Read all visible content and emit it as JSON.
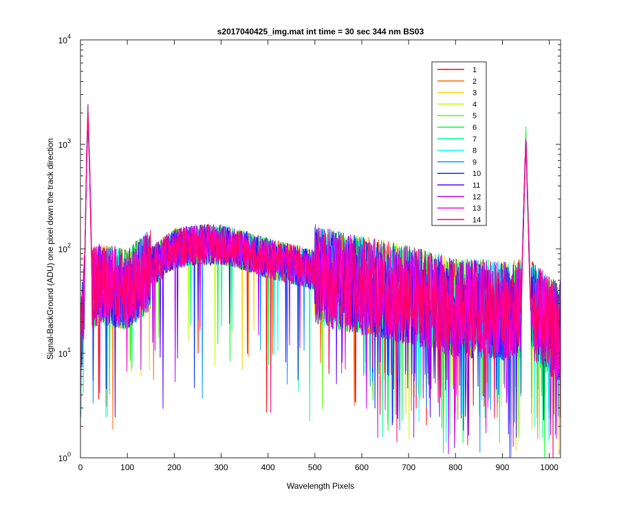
{
  "chart_data": {
    "type": "line",
    "title": "s2017040425_img.mat int time = 30 sec  344 nm BS03",
    "xlabel": "Wavelength Pixels",
    "ylabel": "Signal-BackGround (ADU) one pixel down the track direction",
    "xlim": [
      0,
      1024
    ],
    "ylim": [
      1,
      10000
    ],
    "yscale": "log",
    "grid": false,
    "legend_position": "top-right",
    "x_ticks": [
      0,
      100,
      200,
      300,
      400,
      500,
      600,
      700,
      800,
      900,
      1000
    ],
    "y_ticks": [
      {
        "base": "10",
        "exp": "0",
        "value": 1
      },
      {
        "base": "10",
        "exp": "1",
        "value": 10
      },
      {
        "base": "10",
        "exp": "2",
        "value": 100
      },
      {
        "base": "10",
        "exp": "3",
        "value": 1000
      },
      {
        "base": "10",
        "exp": "4",
        "value": 10000
      }
    ],
    "profile": {
      "description_points_x": [
        0,
        8,
        13,
        16,
        20,
        25,
        40,
        100,
        150,
        200,
        250,
        300,
        350,
        400,
        450,
        500,
        550,
        600,
        650,
        700,
        750,
        800,
        850,
        900,
        940,
        945,
        950,
        955,
        960,
        1000,
        1024
      ],
      "description_points_y": [
        12,
        40,
        700,
        2000,
        500,
        45,
        50,
        45,
        70,
        105,
        115,
        115,
        100,
        85,
        75,
        65,
        55,
        50,
        45,
        40,
        35,
        30,
        30,
        28,
        30,
        200,
        1200,
        200,
        30,
        20,
        18
      ]
    },
    "series": [
      {
        "name": "1",
        "color": "#ff0000"
      },
      {
        "name": "2",
        "color": "#ff6a00"
      },
      {
        "name": "3",
        "color": "#ffd500"
      },
      {
        "name": "4",
        "color": "#bfff00"
      },
      {
        "name": "5",
        "color": "#55ff00"
      },
      {
        "name": "6",
        "color": "#00ff2b"
      },
      {
        "name": "7",
        "color": "#00ff95"
      },
      {
        "name": "8",
        "color": "#00ffff"
      },
      {
        "name": "9",
        "color": "#0095ff"
      },
      {
        "name": "10",
        "color": "#002bff"
      },
      {
        "name": "11",
        "color": "#5500ff"
      },
      {
        "name": "12",
        "color": "#bf00ff"
      },
      {
        "name": "13",
        "color": "#ff00d5"
      },
      {
        "name": "14",
        "color": "#ff006a"
      }
    ]
  }
}
